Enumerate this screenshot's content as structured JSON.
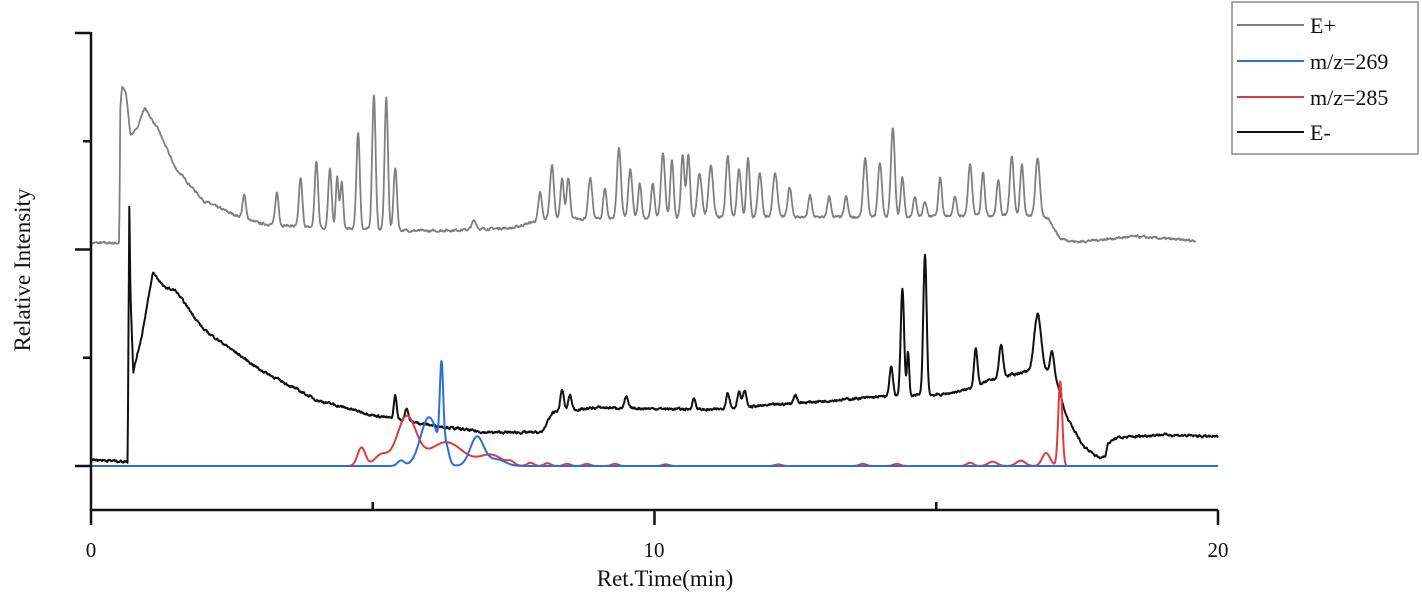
{
  "chart_data": {
    "type": "line",
    "title": "",
    "xlabel": "Ret.Time(min)",
    "ylabel": "Relative Intensity",
    "xlim": [
      0,
      20
    ],
    "ylim": [
      -0.4,
      4
    ],
    "x_ticks": [
      0,
      5,
      10,
      15,
      20
    ],
    "x_tick_labels": [
      "0",
      "",
      "10",
      "",
      "20"
    ],
    "y_ticks": [
      0,
      1,
      2,
      3,
      4
    ],
    "grid": false,
    "legend_position": "top-right",
    "legend": [
      "E+",
      "m/z=269",
      "m/z=285",
      "E-"
    ],
    "series": [
      {
        "name": "E+",
        "color": "#808080",
        "noise": 0.012,
        "x_end": 19.6,
        "baseline": [
          [
            0,
            2.06
          ],
          [
            0.5,
            2.06
          ],
          [
            0.52,
            3.3
          ],
          [
            0.55,
            3.5
          ],
          [
            0.62,
            3.45
          ],
          [
            0.7,
            3.06
          ],
          [
            0.8,
            3.1
          ],
          [
            0.95,
            3.31
          ],
          [
            1.2,
            3.1
          ],
          [
            1.5,
            2.75
          ],
          [
            2,
            2.45
          ],
          [
            2.5,
            2.33
          ],
          [
            3,
            2.24
          ],
          [
            4,
            2.2
          ],
          [
            6,
            2.17
          ],
          [
            7.5,
            2.2
          ],
          [
            8,
            2.28
          ],
          [
            12,
            2.3
          ],
          [
            14,
            2.3
          ],
          [
            16.5,
            2.32
          ],
          [
            17,
            2.28
          ],
          [
            17.2,
            2.1
          ],
          [
            17.5,
            2.07
          ],
          [
            18.5,
            2.12
          ],
          [
            19.6,
            2.08
          ]
        ],
        "peaks": [
          [
            2.72,
            0.21,
            0.03
          ],
          [
            3.3,
            0.3,
            0.03
          ],
          [
            3.72,
            0.45,
            0.03
          ],
          [
            4.0,
            0.61,
            0.03
          ],
          [
            4.24,
            0.56,
            0.03
          ],
          [
            4.37,
            0.47,
            0.025
          ],
          [
            4.45,
            0.43,
            0.025
          ],
          [
            4.74,
            0.9,
            0.03
          ],
          [
            5.02,
            1.25,
            0.03
          ],
          [
            5.24,
            1.22,
            0.03
          ],
          [
            5.4,
            0.58,
            0.03
          ],
          [
            6.8,
            0.08,
            0.04
          ],
          [
            7.97,
            0.25,
            0.03
          ],
          [
            8.18,
            0.5,
            0.035
          ],
          [
            8.36,
            0.37,
            0.03
          ],
          [
            8.47,
            0.38,
            0.03
          ],
          [
            8.86,
            0.37,
            0.035
          ],
          [
            9.12,
            0.28,
            0.03
          ],
          [
            9.37,
            0.66,
            0.035
          ],
          [
            9.57,
            0.45,
            0.035
          ],
          [
            9.74,
            0.32,
            0.03
          ],
          [
            9.97,
            0.32,
            0.03
          ],
          [
            10.15,
            0.6,
            0.035
          ],
          [
            10.31,
            0.54,
            0.03
          ],
          [
            10.5,
            0.58,
            0.03
          ],
          [
            10.6,
            0.58,
            0.03
          ],
          [
            10.8,
            0.41,
            0.04
          ],
          [
            11.0,
            0.47,
            0.04
          ],
          [
            11.3,
            0.57,
            0.035
          ],
          [
            11.5,
            0.45,
            0.035
          ],
          [
            11.66,
            0.55,
            0.03
          ],
          [
            11.87,
            0.41,
            0.035
          ],
          [
            12.14,
            0.41,
            0.04
          ],
          [
            12.4,
            0.27,
            0.035
          ],
          [
            12.76,
            0.2,
            0.03
          ],
          [
            13.1,
            0.19,
            0.03
          ],
          [
            13.4,
            0.19,
            0.03
          ],
          [
            13.74,
            0.55,
            0.035
          ],
          [
            14.0,
            0.5,
            0.035
          ],
          [
            14.23,
            0.82,
            0.035
          ],
          [
            14.4,
            0.36,
            0.03
          ],
          [
            14.62,
            0.18,
            0.03
          ],
          [
            14.8,
            0.13,
            0.03
          ],
          [
            15.07,
            0.36,
            0.03
          ],
          [
            15.33,
            0.18,
            0.03
          ],
          [
            15.6,
            0.47,
            0.035
          ],
          [
            15.83,
            0.41,
            0.03
          ],
          [
            16.1,
            0.32,
            0.03
          ],
          [
            16.34,
            0.55,
            0.035
          ],
          [
            16.52,
            0.47,
            0.03
          ],
          [
            16.8,
            0.55,
            0.04
          ]
        ]
      },
      {
        "name": "m/z=269",
        "color": "#2a6fd6",
        "noise": 0,
        "x_end": 20,
        "baseline": [
          [
            0,
            0
          ],
          [
            20,
            0
          ]
        ],
        "peaks": [
          [
            5.5,
            0.05,
            0.06
          ],
          [
            6.0,
            0.45,
            0.15
          ],
          [
            6.22,
            0.78,
            0.03
          ],
          [
            6.3,
            0.15,
            0.05
          ],
          [
            6.85,
            0.27,
            0.12
          ],
          [
            7.2,
            0.06,
            0.15
          ]
        ]
      },
      {
        "name": "m/z=285",
        "color": "#e03a3a",
        "noise": 0,
        "x_end": 20,
        "baseline": [
          [
            0,
            0
          ],
          [
            20,
            0
          ]
        ],
        "peaks": [
          [
            4.8,
            0.17,
            0.07
          ],
          [
            5.15,
            0.1,
            0.12
          ],
          [
            5.6,
            0.45,
            0.17
          ],
          [
            6.3,
            0.22,
            0.3
          ],
          [
            7.1,
            0.1,
            0.2
          ],
          [
            7.45,
            0.03,
            0.06
          ],
          [
            7.8,
            0.03,
            0.06
          ],
          [
            8.1,
            0.025,
            0.06
          ],
          [
            8.45,
            0.02,
            0.06
          ],
          [
            8.8,
            0.02,
            0.06
          ],
          [
            9.3,
            0.02,
            0.06
          ],
          [
            10.2,
            0.015,
            0.06
          ],
          [
            12.2,
            0.015,
            0.06
          ],
          [
            13.7,
            0.02,
            0.06
          ],
          [
            14.3,
            0.02,
            0.06
          ],
          [
            15.6,
            0.03,
            0.06
          ],
          [
            16.0,
            0.04,
            0.08
          ],
          [
            16.5,
            0.05,
            0.08
          ],
          [
            16.95,
            0.12,
            0.07
          ],
          [
            17.2,
            0.78,
            0.035
          ]
        ]
      },
      {
        "name": "E-",
        "color": "#111111",
        "noise": 0.012,
        "x_end": 20,
        "baseline": [
          [
            0,
            0.06
          ],
          [
            0.65,
            0.04
          ],
          [
            0.68,
            2.4
          ],
          [
            0.7,
            1.6
          ],
          [
            0.75,
            0.87
          ],
          [
            0.9,
            1.2
          ],
          [
            1.1,
            1.79
          ],
          [
            1.3,
            1.65
          ],
          [
            1.5,
            1.62
          ],
          [
            2,
            1.26
          ],
          [
            3,
            0.89
          ],
          [
            4,
            0.61
          ],
          [
            5,
            0.47
          ],
          [
            6,
            0.38
          ],
          [
            7,
            0.31
          ],
          [
            8,
            0.31
          ],
          [
            8.2,
            0.5
          ],
          [
            9,
            0.54
          ],
          [
            11,
            0.52
          ],
          [
            12,
            0.56
          ],
          [
            13,
            0.6
          ],
          [
            14,
            0.64
          ],
          [
            15.1,
            0.66
          ],
          [
            15.5,
            0.7
          ],
          [
            16,
            0.8
          ],
          [
            16.8,
            0.9
          ],
          [
            17.1,
            0.86
          ],
          [
            17.3,
            0.47
          ],
          [
            17.6,
            0.19
          ],
          [
            17.9,
            0.07
          ],
          [
            18.0,
            0.1
          ],
          [
            18.05,
            0.21
          ],
          [
            18.2,
            0.26
          ],
          [
            19,
            0.29
          ],
          [
            20,
            0.27
          ]
        ],
        "peaks": [
          [
            5.4,
            0.22,
            0.025
          ],
          [
            5.6,
            0.12,
            0.03
          ],
          [
            8.36,
            0.2,
            0.03
          ],
          [
            8.5,
            0.14,
            0.03
          ],
          [
            9.5,
            0.1,
            0.03
          ],
          [
            10.7,
            0.1,
            0.03
          ],
          [
            11.3,
            0.15,
            0.03
          ],
          [
            11.5,
            0.15,
            0.03
          ],
          [
            11.6,
            0.15,
            0.03
          ],
          [
            12.5,
            0.08,
            0.03
          ],
          [
            14.2,
            0.28,
            0.03
          ],
          [
            14.4,
            1.0,
            0.03
          ],
          [
            14.5,
            0.4,
            0.02
          ],
          [
            14.8,
            1.3,
            0.03
          ],
          [
            15.7,
            0.35,
            0.03
          ],
          [
            16.15,
            0.3,
            0.035
          ],
          [
            16.8,
            0.5,
            0.06
          ],
          [
            17.05,
            0.2,
            0.03
          ]
        ]
      }
    ]
  }
}
